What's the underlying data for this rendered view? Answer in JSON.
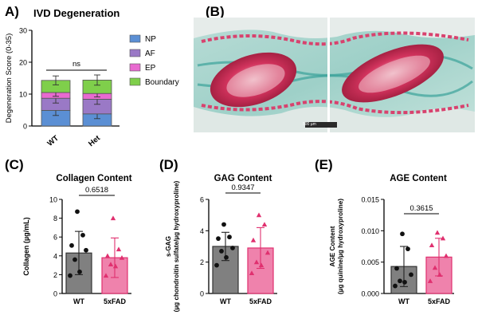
{
  "panels": {
    "A": {
      "letter": "A)",
      "title": "IVD Degeneration"
    },
    "B": {
      "letter": "(B)"
    },
    "C": {
      "letter": "(C)",
      "title": "Collagen Content"
    },
    "D": {
      "letter": "(D)",
      "title": "GAG Content"
    },
    "E": {
      "letter": "(E)",
      "title": "AGE Content"
    }
  },
  "micrograph": {
    "scale_bar_label": "500 µm"
  },
  "colors": {
    "np": "#5b8fd4",
    "af": "#9a79c6",
    "ep": "#e86ad0",
    "boundary": "#7fcf4b",
    "wt_bar": "#808080",
    "fad_bar": "#ef82ac",
    "fad_point": "#e0306f"
  },
  "chart_data": [
    {
      "id": "A",
      "type": "bar",
      "stacked": true,
      "title": "IVD Degeneration",
      "ylabel": "Degeneration Score (0-35)",
      "ylim": [
        0,
        30
      ],
      "yticks": [
        0,
        10,
        20,
        30
      ],
      "categories": [
        "WT",
        "Het"
      ],
      "legend_position": "right",
      "series": [
        {
          "name": "NP",
          "values": [
            4.9,
            3.8
          ],
          "errors": [
            1.6,
            1.5
          ]
        },
        {
          "name": "AF",
          "values": [
            3.8,
            4.6
          ],
          "errors": [
            1.5,
            1.6
          ]
        },
        {
          "name": "EP",
          "values": [
            1.8,
            1.8
          ],
          "errors": [
            1.2,
            1.1
          ]
        },
        {
          "name": "Boundary",
          "values": [
            3.8,
            4.2
          ],
          "errors": [
            1.4,
            1.6
          ]
        }
      ],
      "totals_error": [
        1.6,
        1.8
      ],
      "comparison_label": "ns"
    },
    {
      "id": "C",
      "type": "bar",
      "title": "Collagen Content",
      "ylabel": "Collagen (µg/mL)",
      "ylim": [
        0,
        10
      ],
      "yticks": [
        0,
        2,
        4,
        6,
        8,
        10
      ],
      "categories": [
        "WT",
        "5xFAD"
      ],
      "values": [
        4.3,
        3.8
      ],
      "errors": [
        2.3,
        2.1
      ],
      "points": [
        [
          8.7,
          6.2,
          5.1,
          4.6,
          3.6,
          2.3,
          1.9
        ],
        [
          8.0,
          4.7,
          4.0,
          3.8,
          3.1,
          2.9,
          1.9
        ]
      ],
      "p_value": "0.6518"
    },
    {
      "id": "D",
      "type": "bar",
      "title": "GAG Content",
      "ylabel_lines": [
        "s-GAG",
        "(µg chondroitin sulfate/µg hydroxyproline)"
      ],
      "ylim": [
        0,
        6
      ],
      "yticks": [
        0,
        2,
        4,
        6
      ],
      "categories": [
        "WT",
        "5xFAD"
      ],
      "values": [
        3.0,
        2.9
      ],
      "errors": [
        0.9,
        1.3
      ],
      "points": [
        [
          4.4,
          3.6,
          3.5,
          2.9,
          2.7,
          2.3,
          1.8
        ],
        [
          5.0,
          4.4,
          3.4,
          2.6,
          2.0,
          1.8,
          1.3
        ]
      ],
      "p_value": "0.9347"
    },
    {
      "id": "E",
      "type": "bar",
      "title": "AGE Content",
      "ylabel_lines": [
        "AGE Content",
        "(µg quinine/µg hydroxyproline)"
      ],
      "ylim": [
        0,
        0.015
      ],
      "yticks": [
        0.0,
        0.005,
        0.01,
        0.015
      ],
      "ytick_labels": [
        "0.000",
        "0.005",
        "0.010",
        "0.015"
      ],
      "categories": [
        "WT",
        "5xFAD"
      ],
      "values": [
        0.0043,
        0.0058
      ],
      "errors": [
        0.0032,
        0.003
      ],
      "points": [
        [
          0.0095,
          0.0071,
          0.004,
          0.003,
          0.002,
          0.0018,
          0.0012
        ],
        [
          0.0097,
          0.0088,
          0.0077,
          0.006,
          0.0041,
          0.003,
          0.002
        ]
      ],
      "p_value": "0.3615"
    }
  ]
}
